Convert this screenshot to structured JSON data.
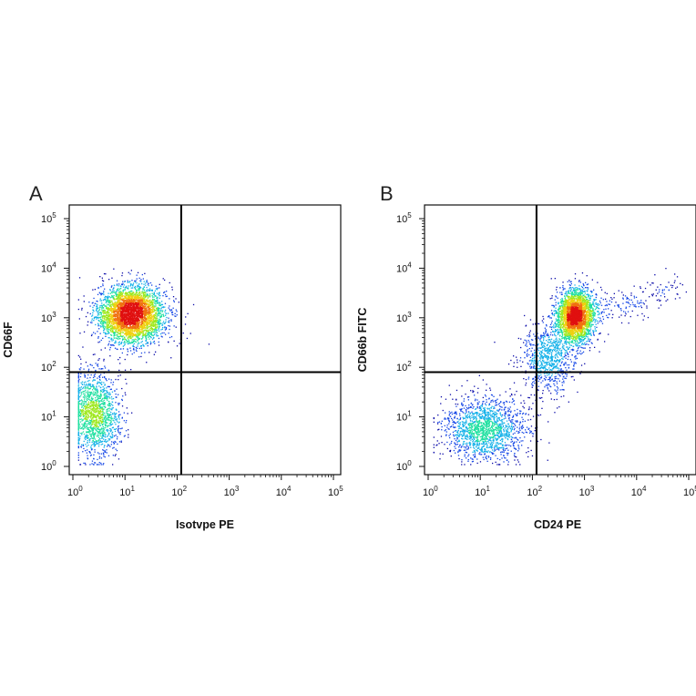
{
  "chart_data": [
    {
      "type": "scatter",
      "panel_label": "A",
      "xlabel": "Isotvpe PE",
      "ylabel": "CD66F",
      "x_scale": "log",
      "y_scale": "log",
      "xlim": [
        1,
        100000
      ],
      "ylim": [
        1,
        100000
      ],
      "x_tick_labels": [
        {
          "base": "10",
          "exp": "0",
          "value": 1
        },
        {
          "base": "10",
          "exp": "1",
          "value": 10
        },
        {
          "base": "10",
          "exp": "2",
          "value": 100
        },
        {
          "base": "10",
          "exp": "3",
          "value": 1000
        },
        {
          "base": "10",
          "exp": "4",
          "value": 10000
        },
        {
          "base": "10",
          "exp": "5",
          "value": 100000
        }
      ],
      "y_tick_labels": [
        {
          "base": "10",
          "exp": "0",
          "value": 1
        },
        {
          "base": "10",
          "exp": "1",
          "value": 10
        },
        {
          "base": "10",
          "exp": "2",
          "value": 100
        },
        {
          "base": "10",
          "exp": "3",
          "value": 1000
        },
        {
          "base": "10",
          "exp": "4",
          "value": 10000
        },
        {
          "base": "10",
          "exp": "5",
          "value": 100000
        }
      ],
      "quadrant_gate": {
        "x": 120,
        "y": 80
      },
      "density": "pseudocolor",
      "populations": [
        {
          "x_center": 13,
          "y_center": 1200,
          "x_spread_decades": 0.45,
          "y_spread_decades": 0.4,
          "weight": 0.72
        },
        {
          "x_center": 2.5,
          "y_center": 12,
          "x_spread_decades": 0.35,
          "y_spread_decades": 0.6,
          "weight": 0.28
        }
      ],
      "outliers": [
        {
          "x": 400,
          "y": 300
        }
      ]
    },
    {
      "type": "scatter",
      "panel_label": "B",
      "xlabel": "CD24 PE",
      "ylabel": "CD66b FITC",
      "x_scale": "log",
      "y_scale": "log",
      "xlim": [
        1,
        100000
      ],
      "ylim": [
        1,
        100000
      ],
      "x_tick_labels": [
        {
          "base": "10",
          "exp": "0",
          "value": 1
        },
        {
          "base": "10",
          "exp": "1",
          "value": 10
        },
        {
          "base": "10",
          "exp": "2",
          "value": 100
        },
        {
          "base": "10",
          "exp": "3",
          "value": 1000
        },
        {
          "base": "10",
          "exp": "4",
          "value": 10000
        },
        {
          "base": "10",
          "exp": "5",
          "value": 100000
        }
      ],
      "y_tick_labels": [
        {
          "base": "10",
          "exp": "0",
          "value": 1
        },
        {
          "base": "10",
          "exp": "1",
          "value": 10
        },
        {
          "base": "10",
          "exp": "2",
          "value": 100
        },
        {
          "base": "10",
          "exp": "3",
          "value": 1000
        },
        {
          "base": "10",
          "exp": "4",
          "value": 10000
        },
        {
          "base": "10",
          "exp": "5",
          "value": 100000
        }
      ],
      "quadrant_gate": {
        "x": 120,
        "y": 80
      },
      "density": "pseudocolor",
      "populations": [
        {
          "x_center": 650,
          "y_center": 1100,
          "x_spread_decades": 0.25,
          "y_spread_decades": 0.38,
          "weight": 0.55
        },
        {
          "x_center": 12,
          "y_center": 6,
          "x_spread_decades": 0.55,
          "y_spread_decades": 0.45,
          "weight": 0.3
        },
        {
          "x_center": 200,
          "y_center": 150,
          "x_spread_decades": 0.35,
          "y_spread_decades": 0.5,
          "weight": 0.15
        }
      ],
      "tail_to": {
        "x": 60000,
        "y": 4000
      }
    }
  ],
  "colors": {
    "axis": "#111111",
    "gate": "#000000",
    "density_scale": [
      "#0a0aa8",
      "#1446e6",
      "#12b0e8",
      "#1fe0a0",
      "#9ee81e",
      "#f0d010",
      "#f07010",
      "#e01010"
    ]
  }
}
